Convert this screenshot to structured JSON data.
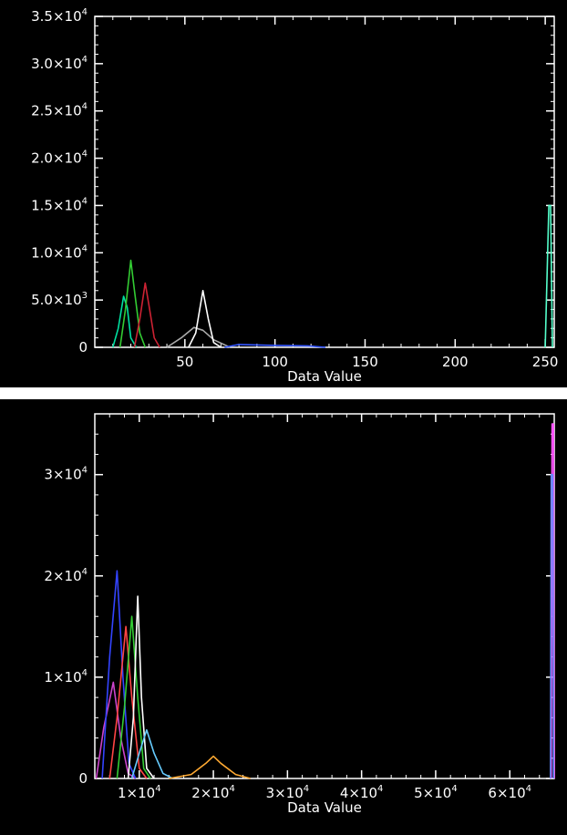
{
  "chart_data": [
    {
      "type": "line",
      "title": "",
      "xlabel": "Data Value",
      "ylabel": "",
      "xlim": [
        0,
        255
      ],
      "ylim": [
        0,
        35000
      ],
      "x_ticks": [
        {
          "value": 50,
          "label": "50"
        },
        {
          "value": 100,
          "label": "100"
        },
        {
          "value": 150,
          "label": "150"
        },
        {
          "value": 200,
          "label": "200"
        },
        {
          "value": 250,
          "label": "250"
        }
      ],
      "y_ticks": [
        {
          "value": 0,
          "label": "0",
          "exp": ""
        },
        {
          "value": 5000,
          "label": "5.0×10",
          "exp": "3"
        },
        {
          "value": 10000,
          "label": "1.0×10",
          "exp": "4"
        },
        {
          "value": 15000,
          "label": "1.5×10",
          "exp": "4"
        },
        {
          "value": 20000,
          "label": "2.0×10",
          "exp": "4"
        },
        {
          "value": 25000,
          "label": "2.5×10",
          "exp": "4"
        },
        {
          "value": 30000,
          "label": "3.0×10",
          "exp": "4"
        },
        {
          "value": 35000,
          "label": "3.5×10",
          "exp": "4"
        }
      ],
      "series": [
        {
          "color": "#00e0a0",
          "points": [
            [
              10,
              0
            ],
            [
              13,
              2000
            ],
            [
              16,
              5400
            ],
            [
              18,
              4200
            ],
            [
              20,
              1000
            ],
            [
              23,
              0
            ]
          ]
        },
        {
          "color": "#33cc33",
          "points": [
            [
              14,
              0
            ],
            [
              17,
              4000
            ],
            [
              20,
              9200
            ],
            [
              22,
              6000
            ],
            [
              25,
              1500
            ],
            [
              28,
              0
            ]
          ]
        },
        {
          "color": "#cc2233",
          "points": [
            [
              22,
              0
            ],
            [
              25,
              3000
            ],
            [
              28,
              6800
            ],
            [
              30,
              4500
            ],
            [
              33,
              1000
            ],
            [
              36,
              0
            ]
          ]
        },
        {
          "color": "#aaaaaa",
          "points": [
            [
              40,
              0
            ],
            [
              48,
              1000
            ],
            [
              55,
              2100
            ],
            [
              60,
              1800
            ],
            [
              66,
              800
            ],
            [
              75,
              0
            ]
          ]
        },
        {
          "color": "#ffffff",
          "points": [
            [
              52,
              0
            ],
            [
              56,
              1500
            ],
            [
              60,
              6000
            ],
            [
              63,
              3000
            ],
            [
              66,
              500
            ],
            [
              70,
              0
            ]
          ]
        },
        {
          "color": "#3355ff",
          "points": [
            [
              72,
              0
            ],
            [
              80,
              300
            ],
            [
              100,
              200
            ],
            [
              118,
              150
            ],
            [
              128,
              0
            ]
          ]
        },
        {
          "color": "#55ffcc",
          "points": [
            [
              250,
              0
            ],
            [
              252,
              15000
            ],
            [
              253,
              15000
            ],
            [
              254,
              0
            ]
          ]
        }
      ]
    },
    {
      "type": "line",
      "title": "",
      "xlabel": "Data Value",
      "ylabel": "",
      "xlim": [
        4000,
        66000
      ],
      "ylim": [
        0,
        36000
      ],
      "x_ticks": [
        {
          "value": 10000,
          "label": "1×10",
          "exp": "4"
        },
        {
          "value": 20000,
          "label": "2×10",
          "exp": "4"
        },
        {
          "value": 30000,
          "label": "3×10",
          "exp": "4"
        },
        {
          "value": 40000,
          "label": "4×10",
          "exp": "4"
        },
        {
          "value": 50000,
          "label": "5×10",
          "exp": "4"
        },
        {
          "value": 60000,
          "label": "6×10",
          "exp": "4"
        }
      ],
      "y_ticks": [
        {
          "value": 0,
          "label": "0",
          "exp": ""
        },
        {
          "value": 10000,
          "label": "1×10",
          "exp": "4"
        },
        {
          "value": 20000,
          "label": "2×10",
          "exp": "4"
        },
        {
          "value": 30000,
          "label": "3×10",
          "exp": "4"
        }
      ],
      "series": [
        {
          "color": "#cc44cc",
          "points": [
            [
              4200,
              0
            ],
            [
              5200,
              5000
            ],
            [
              6500,
              9500
            ],
            [
              7500,
              4000
            ],
            [
              8500,
              500
            ],
            [
              9500,
              0
            ]
          ]
        },
        {
          "color": "#3344ff",
          "points": [
            [
              5000,
              0
            ],
            [
              6000,
              12000
            ],
            [
              7000,
              20500
            ],
            [
              7800,
              10000
            ],
            [
              8600,
              1500
            ],
            [
              9500,
              0
            ]
          ]
        },
        {
          "color": "#ff4444",
          "points": [
            [
              6000,
              0
            ],
            [
              7000,
              6000
            ],
            [
              8200,
              15000
            ],
            [
              9000,
              8000
            ],
            [
              10000,
              1000
            ],
            [
              11000,
              0
            ]
          ]
        },
        {
          "color": "#33cc33",
          "points": [
            [
              7000,
              0
            ],
            [
              8000,
              7000
            ],
            [
              9000,
              16000
            ],
            [
              9800,
              8000
            ],
            [
              10600,
              1000
            ],
            [
              11500,
              0
            ]
          ]
        },
        {
          "color": "#ffffff",
          "points": [
            [
              8500,
              0
            ],
            [
              9200,
              6000
            ],
            [
              9800,
              18000
            ],
            [
              10300,
              8000
            ],
            [
              11000,
              1000
            ],
            [
              12000,
              0
            ]
          ]
        },
        {
          "color": "#66ccff",
          "points": [
            [
              9000,
              0
            ],
            [
              10000,
              2500
            ],
            [
              11000,
              4800
            ],
            [
              12000,
              2500
            ],
            [
              13200,
              500
            ],
            [
              14500,
              0
            ]
          ]
        },
        {
          "color": "#ffaa33",
          "points": [
            [
              14000,
              0
            ],
            [
              17000,
              400
            ],
            [
              19000,
              1500
            ],
            [
              20000,
              2200
            ],
            [
              21000,
              1500
            ],
            [
              23000,
              400
            ],
            [
              25000,
              0
            ]
          ]
        },
        {
          "color": "#ff55ff",
          "points": [
            [
              65600,
              0
            ],
            [
              65700,
              35000
            ],
            [
              65900,
              35000
            ],
            [
              66000,
              0
            ]
          ]
        },
        {
          "color": "#6688ff",
          "points": [
            [
              65500,
              0
            ],
            [
              65600,
              30000
            ],
            [
              65800,
              30000
            ],
            [
              65900,
              0
            ]
          ]
        }
      ]
    }
  ]
}
